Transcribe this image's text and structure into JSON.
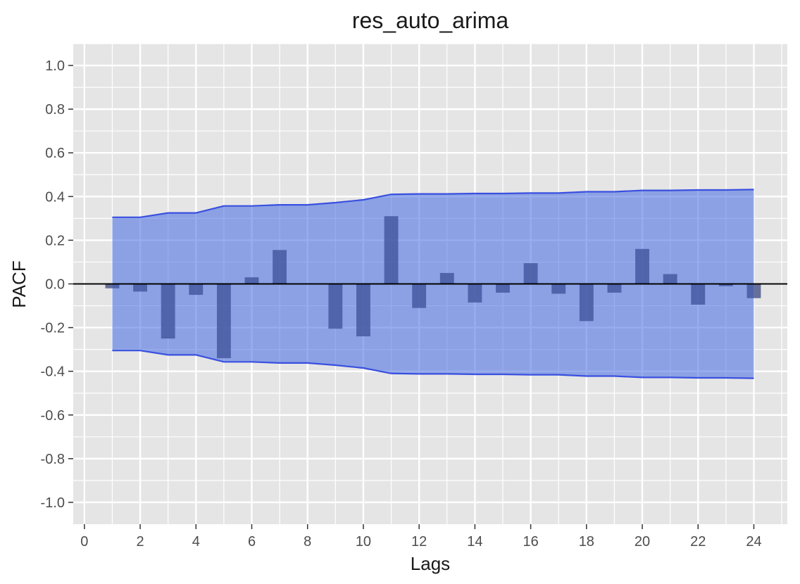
{
  "chart_data": {
    "type": "bar",
    "title": "res_auto_arima",
    "xlabel": "Lags",
    "ylabel": "PACF",
    "xlim": [
      -0.4,
      25.2
    ],
    "ylim": [
      -1.1,
      1.1
    ],
    "x_ticks": [
      "0",
      "2",
      "4",
      "6",
      "8",
      "10",
      "12",
      "14",
      "16",
      "18",
      "20",
      "22",
      "24"
    ],
    "y_ticks": [
      "1.0",
      "0.8",
      "0.6",
      "0.4",
      "0.2",
      "0.0",
      "-0.2",
      "-0.4",
      "-0.6",
      "-0.8",
      "-1.0"
    ],
    "lags": [
      1,
      2,
      3,
      4,
      5,
      6,
      7,
      8,
      9,
      10,
      11,
      12,
      13,
      14,
      15,
      16,
      17,
      18,
      19,
      20,
      21,
      22,
      23,
      24
    ],
    "series": [
      {
        "values": [
          -0.02,
          -0.035,
          -0.25,
          -0.05,
          -0.34,
          0.03,
          0.155,
          0.0,
          -0.205,
          -0.24,
          0.31,
          -0.11,
          0.05,
          -0.085,
          -0.04,
          0.095,
          -0.045,
          -0.17,
          -0.04,
          0.16,
          0.045,
          -0.095,
          -0.01,
          -0.065
        ]
      }
    ],
    "confidence_band": {
      "upper": [
        0.305,
        0.305,
        0.325,
        0.325,
        0.357,
        0.357,
        0.362,
        0.362,
        0.372,
        0.385,
        0.41,
        0.412,
        0.412,
        0.414,
        0.414,
        0.416,
        0.416,
        0.422,
        0.422,
        0.428,
        0.428,
        0.43,
        0.43,
        0.432
      ],
      "lower": [
        -0.305,
        -0.305,
        -0.325,
        -0.325,
        -0.357,
        -0.357,
        -0.362,
        -0.362,
        -0.372,
        -0.385,
        -0.41,
        -0.412,
        -0.412,
        -0.414,
        -0.414,
        -0.416,
        -0.416,
        -0.422,
        -0.422,
        -0.428,
        -0.428,
        -0.43,
        -0.43,
        -0.432
      ]
    },
    "grid": true,
    "colors": {
      "panel_bg": "#e5e5e5",
      "grid": "#ffffff",
      "bar": "#595959",
      "band_fill": "#4169e1",
      "band_line": "#3a50e0",
      "zero_line": "#000000"
    }
  }
}
